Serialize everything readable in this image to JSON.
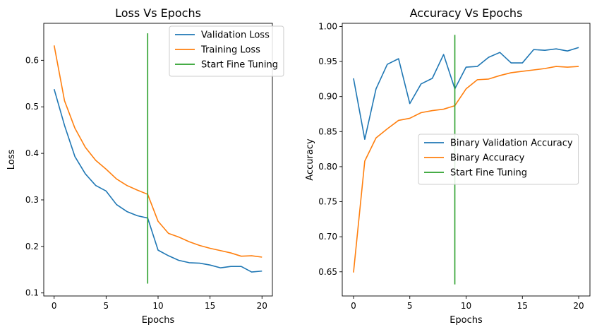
{
  "chart_data": [
    {
      "type": "line",
      "title": "Loss Vs Epochs",
      "xlabel": "Epochs",
      "ylabel": "Loss",
      "xlim": [
        -1,
        21
      ],
      "ylim": [
        0.0935,
        0.6795
      ],
      "xticks": [
        0,
        5,
        10,
        15,
        20
      ],
      "yticks": [
        0.1,
        0.2,
        0.3,
        0.4,
        0.5,
        0.6
      ],
      "grid": false,
      "legend_position": "top-right",
      "series": [
        {
          "name": "Validation Loss",
          "color": "#1f77b4",
          "x": [
            0,
            1,
            2,
            3,
            4,
            5,
            6,
            7,
            8,
            9,
            10,
            11,
            12,
            13,
            14,
            15,
            16,
            17,
            18,
            19,
            20
          ],
          "y": [
            0.538,
            0.46,
            0.393,
            0.356,
            0.331,
            0.319,
            0.29,
            0.275,
            0.266,
            0.261,
            0.192,
            0.18,
            0.17,
            0.165,
            0.164,
            0.16,
            0.154,
            0.157,
            0.157,
            0.145,
            0.147
          ]
        },
        {
          "name": "Training Loss",
          "color": "#ff7f0e",
          "x": [
            0,
            1,
            2,
            3,
            4,
            5,
            6,
            7,
            8,
            9,
            10,
            11,
            12,
            13,
            14,
            15,
            16,
            17,
            18,
            19,
            20
          ],
          "y": [
            0.632,
            0.513,
            0.454,
            0.413,
            0.385,
            0.366,
            0.345,
            0.331,
            0.321,
            0.312,
            0.254,
            0.228,
            0.22,
            0.21,
            0.202,
            0.196,
            0.191,
            0.186,
            0.179,
            0.18,
            0.177
          ]
        },
        {
          "name": "Start Fine Tuning",
          "color": "#2ca02c",
          "x": [
            9,
            9
          ],
          "y": [
            0.12,
            0.658
          ]
        }
      ]
    },
    {
      "type": "line",
      "title": "Accuracy Vs Epochs",
      "xlabel": "Epochs",
      "ylabel": "Accuracy",
      "xlim": [
        -1,
        21
      ],
      "ylim": [
        0.6155,
        1.0045
      ],
      "xticks": [
        0,
        5,
        10,
        15,
        20
      ],
      "yticks": [
        0.65,
        0.7,
        0.75,
        0.8,
        0.85,
        0.9,
        0.95,
        1.0
      ],
      "ytick_labels": [
        "0.65",
        "0.70",
        "0.75",
        "0.80",
        "0.85",
        "0.90",
        "0.95",
        "1.00"
      ],
      "grid": false,
      "legend_position": "center-right",
      "series": [
        {
          "name": "Binary Validation Accuracy",
          "color": "#1f77b4",
          "x": [
            0,
            1,
            2,
            3,
            4,
            5,
            6,
            7,
            8,
            9,
            10,
            11,
            12,
            13,
            14,
            15,
            16,
            17,
            18,
            19,
            20
          ],
          "y": [
            0.926,
            0.839,
            0.911,
            0.946,
            0.954,
            0.89,
            0.918,
            0.926,
            0.96,
            0.911,
            0.942,
            0.943,
            0.956,
            0.963,
            0.948,
            0.948,
            0.967,
            0.966,
            0.968,
            0.965,
            0.97
          ]
        },
        {
          "name": "Binary Accuracy",
          "color": "#ff7f0e",
          "x": [
            0,
            1,
            2,
            3,
            4,
            5,
            6,
            7,
            8,
            9,
            10,
            11,
            12,
            13,
            14,
            15,
            16,
            17,
            18,
            19,
            20
          ],
          "y": [
            0.649,
            0.808,
            0.841,
            0.854,
            0.866,
            0.869,
            0.877,
            0.88,
            0.882,
            0.887,
            0.911,
            0.924,
            0.925,
            0.93,
            0.934,
            0.936,
            0.938,
            0.94,
            0.943,
            0.942,
            0.943
          ]
        },
        {
          "name": "Start Fine Tuning",
          "color": "#2ca02c",
          "x": [
            9,
            9
          ],
          "y": [
            0.632,
            0.988
          ]
        }
      ]
    }
  ]
}
